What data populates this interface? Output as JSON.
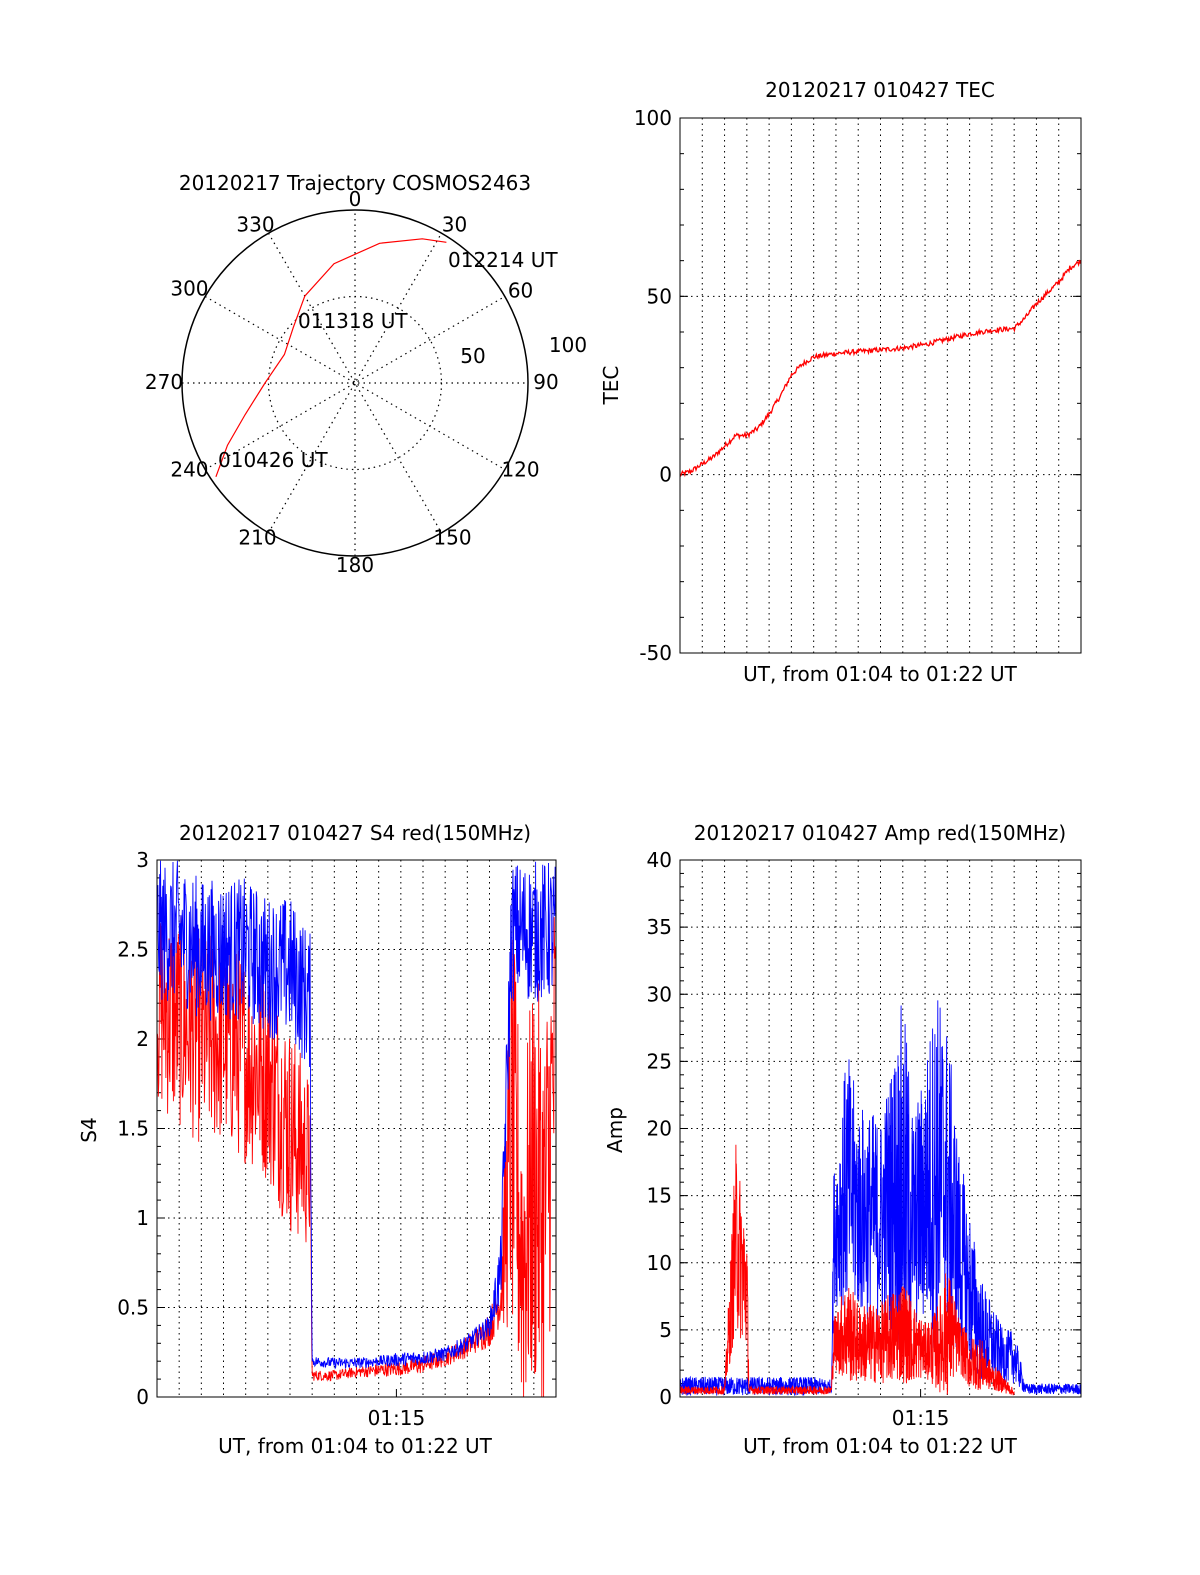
{
  "colors": {
    "red": "#ff0000",
    "blue": "#0000ff",
    "axis": "#000000",
    "grid": "#000000"
  },
  "polar": {
    "title": "20120217 Trajectory COSMOS2463",
    "azimuth_labels": [
      "0",
      "30",
      "60",
      "90",
      "120",
      "150",
      "180",
      "210",
      "240",
      "270",
      "300",
      "330"
    ],
    "ring_labels": [
      "100",
      "50"
    ],
    "time_labels": [
      "010426 UT",
      "011318 UT",
      "012214 UT"
    ]
  },
  "chart_data": [
    {
      "id": "trajectory",
      "type": "scatter",
      "title": "20120217 Trajectory COSMOS2463",
      "projection": "polar",
      "radial_ticks": [
        50,
        100
      ],
      "azimuth_ticks_deg": [
        0,
        30,
        60,
        90,
        120,
        150,
        180,
        210,
        240,
        270,
        300,
        330
      ],
      "series": [
        {
          "color": "#ff0000",
          "points_az_r": [
            [
              236,
              97
            ],
            [
              244,
              82
            ],
            [
              254,
              66
            ],
            [
              270,
              52
            ],
            [
              292,
              44
            ],
            [
              312,
              48
            ],
            [
              330,
              58
            ],
            [
              350,
              70
            ],
            [
              10,
              82
            ],
            [
              25,
              92
            ],
            [
              33,
              97
            ]
          ]
        }
      ],
      "annotations": [
        {
          "text": "010426 UT",
          "az": 236,
          "r": 97
        },
        {
          "text": "011318 UT",
          "az": 300,
          "r": 48
        },
        {
          "text": "012214 UT",
          "az": 33,
          "r": 97
        }
      ]
    },
    {
      "id": "tec",
      "type": "line",
      "title": "20120217 010427 TEC",
      "xlabel": "UT, from 01:04 to 01:22 UT",
      "ylabel": "TEC",
      "xlim": [
        0,
        18
      ],
      "ylim": [
        -50,
        100
      ],
      "yticks": [
        -50,
        0,
        50,
        100
      ],
      "grid": true,
      "series": [
        {
          "color": "#ff0000",
          "x": [
            0,
            0.5,
            1,
            1.5,
            2,
            2.5,
            3,
            3.5,
            4,
            4.5,
            5,
            5.5,
            6,
            7,
            8,
            9,
            10,
            11,
            12,
            13,
            14,
            15,
            15.5,
            16,
            16.5,
            17,
            17.5,
            18
          ],
          "y": [
            0,
            1,
            3,
            5,
            8,
            11,
            11,
            13,
            17,
            22,
            28,
            31,
            33,
            34,
            34.5,
            35,
            35.5,
            36.5,
            38,
            39.5,
            40.5,
            41,
            44,
            48,
            51,
            54,
            58,
            60
          ]
        }
      ]
    },
    {
      "id": "s4",
      "type": "line",
      "title": "20120217 010427 S4 red(150MHz)",
      "xlabel": "UT, from 01:04 to 01:22 UT",
      "ylabel": "S4",
      "xlim": [
        0,
        18
      ],
      "ylim": [
        0,
        3
      ],
      "xticks": [
        10.8
      ],
      "xtick_labels": [
        "01:15"
      ],
      "yticks": [
        0,
        0.5,
        1,
        1.5,
        2,
        2.5,
        3
      ],
      "ytick_labels": [
        "0",
        "0.5",
        "1",
        "1.5",
        "2",
        "2.5",
        "3"
      ],
      "grid": true,
      "series": [
        {
          "color": "#ff0000",
          "noisy": true,
          "x": [
            0,
            1,
            2,
            3,
            4,
            5,
            6,
            6.9,
            7,
            8,
            9,
            10,
            11,
            12,
            13,
            14,
            15,
            15.5,
            16,
            16.5,
            17,
            17.5,
            18
          ],
          "y": [
            2.2,
            2.1,
            2.0,
            2.0,
            1.9,
            1.8,
            1.5,
            1.3,
            0.12,
            0.12,
            0.14,
            0.15,
            0.16,
            0.18,
            0.22,
            0.28,
            0.38,
            0.55,
            1.5,
            0.8,
            1.2,
            1.0,
            2.0
          ],
          "noise": [
            0.6,
            0.6,
            0.6,
            0.6,
            0.6,
            0.6,
            0.6,
            0.5,
            0.03,
            0.03,
            0.03,
            0.04,
            0.04,
            0.05,
            0.05,
            0.06,
            0.1,
            0.15,
            1.2,
            1.0,
            1.2,
            1.2,
            1.0
          ]
        },
        {
          "color": "#0000ff",
          "noisy": true,
          "x": [
            0,
            1,
            2,
            3,
            4,
            5,
            6,
            6.9,
            7,
            8,
            9,
            10,
            11,
            12,
            13,
            14,
            15,
            15.5,
            16,
            16.5,
            17,
            17.5,
            18
          ],
          "y": [
            2.6,
            2.6,
            2.5,
            2.5,
            2.5,
            2.4,
            2.4,
            2.2,
            0.2,
            0.19,
            0.19,
            0.2,
            0.21,
            0.22,
            0.24,
            0.3,
            0.4,
            0.7,
            2.6,
            2.6,
            2.6,
            2.6,
            2.6
          ],
          "noise": [
            0.4,
            0.4,
            0.4,
            0.4,
            0.4,
            0.4,
            0.4,
            0.4,
            0.03,
            0.03,
            0.03,
            0.03,
            0.04,
            0.04,
            0.04,
            0.05,
            0.06,
            0.2,
            0.4,
            0.4,
            0.4,
            0.4,
            0.4
          ]
        }
      ]
    },
    {
      "id": "amp",
      "type": "line",
      "title": "20120217 010427 Amp red(150MHz)",
      "xlabel": "UT, from 01:04 to 01:22 UT",
      "ylabel": "Amp",
      "xlim": [
        0,
        18
      ],
      "ylim": [
        0,
        40
      ],
      "xticks": [
        10.8
      ],
      "xtick_labels": [
        "01:15"
      ],
      "yticks": [
        0,
        5,
        10,
        15,
        20,
        25,
        30,
        35,
        40
      ],
      "grid": true,
      "series": [
        {
          "color": "#0000ff",
          "noisy": true,
          "x": [
            0,
            2,
            4,
            6,
            6.8,
            6.9,
            7.5,
            8,
            9,
            9.5,
            10,
            10.5,
            11,
            11.5,
            12,
            12.5,
            13,
            13.5,
            14,
            14.5,
            15,
            15.5,
            16,
            18
          ],
          "y": [
            0.8,
            0.8,
            0.8,
            0.8,
            0.8,
            12,
            16,
            14,
            13,
            15,
            16,
            13,
            15,
            17,
            16,
            11,
            8,
            5,
            4,
            3,
            3,
            0.6,
            0.6,
            0.6
          ],
          "noise": [
            0.7,
            0.7,
            0.7,
            0.7,
            0.5,
            5,
            10,
            8,
            8,
            10,
            14,
            8,
            10,
            14,
            12,
            8,
            6,
            4,
            3,
            2,
            2,
            0.4,
            0.4,
            0.4
          ]
        },
        {
          "color": "#ff0000",
          "noisy": true,
          "x": [
            0,
            2,
            2.2,
            2.5,
            3,
            3.1,
            6,
            6.8,
            6.9,
            7.5,
            8,
            9,
            10,
            10.5,
            11,
            11.5,
            12,
            12.5,
            13,
            13.5,
            14,
            14.5,
            15
          ],
          "y": [
            0.5,
            0.5,
            5,
            12,
            8,
            0.5,
            0.5,
            0.5,
            4,
            5,
            4,
            4,
            5,
            4,
            3.5,
            3.5,
            5,
            4,
            2.5,
            2.5,
            1.5,
            1.0,
            0.3
          ],
          "noise": [
            0.3,
            0.3,
            3,
            7,
            5,
            0.3,
            0.3,
            0.3,
            2,
            4,
            3,
            3,
            4,
            3,
            2,
            3,
            5,
            2,
            2,
            2,
            1,
            0.7,
            0.2
          ]
        }
      ]
    }
  ]
}
